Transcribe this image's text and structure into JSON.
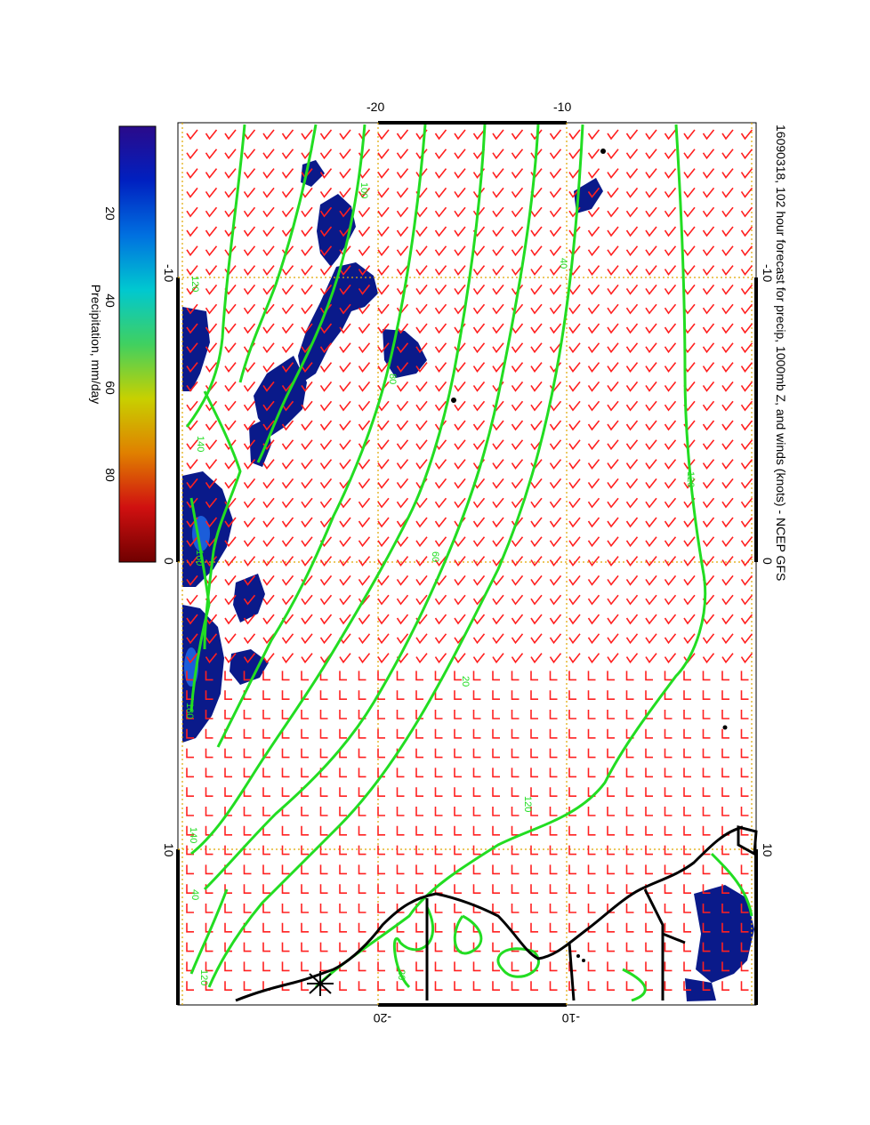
{
  "title": "16090318, 102 hour forecast for precip, 1000mb Z, and winds (knots) - NCEP GFS",
  "colorbar": {
    "label": "Precipitation, mm/day",
    "ticks": [
      "20",
      "40",
      "60",
      "80"
    ],
    "tick_values": [
      20,
      40,
      60,
      80
    ],
    "range": [
      0,
      100
    ],
    "colors": [
      "#2a0a8a",
      "#0020c0",
      "#0070e0",
      "#00c8d0",
      "#40d060",
      "#c8d000",
      "#e08000",
      "#d01010",
      "#700000"
    ]
  },
  "axes": {
    "latitude_ticks": [
      "-10",
      "0",
      "10"
    ],
    "latitude_values": [
      -10,
      0,
      10
    ],
    "longitude_ticks": [
      "-20",
      "-10"
    ],
    "longitude_values": [
      -20,
      -10
    ],
    "lat_range": [
      -15,
      15
    ],
    "lon_range": [
      -30,
      0
    ]
  },
  "contour_labels": [
    "100",
    "120",
    "80",
    "60",
    "40",
    "120",
    "20",
    "140",
    "160",
    "180",
    "140",
    "120",
    "120",
    "40",
    "20"
  ],
  "colors": {
    "contour": "#22dd22",
    "wind_barb": "#ff2020",
    "coastline": "#000000",
    "grid": "#e0a800",
    "precip": "#0a1a8a"
  }
}
